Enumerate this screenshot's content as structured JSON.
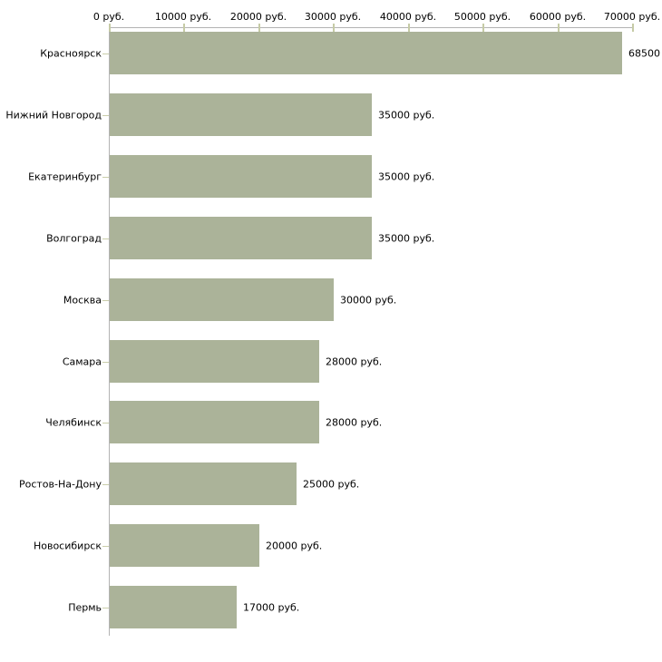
{
  "chart_data": {
    "type": "bar",
    "orientation": "horizontal",
    "title": "",
    "xlabel": "",
    "ylabel": "",
    "legend_position": "none",
    "grid": false,
    "categories": [
      "Красноярск",
      "Нижний Новгород",
      "Екатеринбург",
      "Волгоград",
      "Москва",
      "Самара",
      "Челябинск",
      "Ростов-На-Дону",
      "Новосибирск",
      "Пермь"
    ],
    "values": [
      68500,
      35000,
      35000,
      35000,
      30000,
      28000,
      28000,
      25000,
      20000,
      17000
    ],
    "value_labels": [
      "68500",
      "35000 руб.",
      "35000 руб.",
      "35000 руб.",
      "30000 руб.",
      "28000 руб.",
      "28000 руб.",
      "25000 руб.",
      "20000 руб.",
      "17000 руб."
    ],
    "x_axis": {
      "position": "top",
      "range": [
        0,
        70000
      ],
      "tick_values": [
        0,
        10000,
        20000,
        30000,
        40000,
        50000,
        60000,
        70000
      ],
      "tick_labels": [
        "0 руб.",
        "10000 руб.",
        "20000 руб.",
        "30000 руб.",
        "40000 руб.",
        "50000 руб.",
        "60000 руб.",
        "70000 руб."
      ]
    },
    "colors": {
      "bar": "#abb399",
      "axis_line": "#b3b3b3",
      "axis_tick": "#c6cba6",
      "category_tick": "#c9cda9",
      "text": "#000000",
      "background": "#ffffff"
    }
  }
}
